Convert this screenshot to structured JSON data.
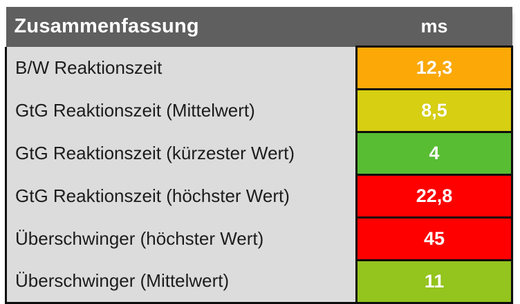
{
  "table": {
    "header": {
      "title": "Zusammenfassung",
      "unit_label": "ms"
    },
    "rows": [
      {
        "label": "B/W Reaktionszeit",
        "value": "12,3",
        "color": "#FCA908"
      },
      {
        "label": "GtG Reaktionszeit (Mittelwert)",
        "value": "8,5",
        "color": "#D6CF12"
      },
      {
        "label": "GtG Reaktionszeit (kürzester Wert)",
        "value": "4",
        "color": "#58BD33"
      },
      {
        "label": "GtG Reaktionszeit (höchster Wert)",
        "value": "22,8",
        "color": "#FE0000"
      },
      {
        "label": "Überschwinger (höchster Wert)",
        "value": "45",
        "color": "#FE0000"
      },
      {
        "label": "Überschwinger (Mittelwert)",
        "value": "11",
        "color": "#94C41E"
      }
    ],
    "colors": {
      "header_bg": "#5F5F5F",
      "header_text": "#FFFFFF",
      "row_bg": "#DCDCDC",
      "label_text": "#1C1C1C",
      "value_text": "#FFFFFF",
      "border": "#0D0D0D"
    }
  }
}
